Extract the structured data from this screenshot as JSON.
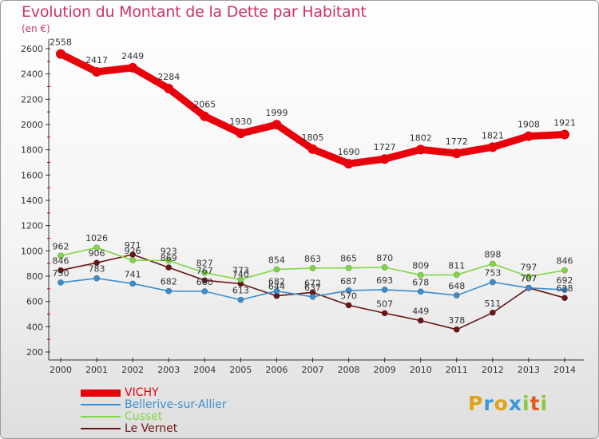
{
  "header": {
    "title": "Evolution du Montant de la Dette par Habitant",
    "unit": "(en €)"
  },
  "chart_data": {
    "type": "line",
    "title": "Evolution du Montant de la Dette par Habitant",
    "ylabel": "(en €)",
    "xlabel": "",
    "x": [
      "2000",
      "2001",
      "2002",
      "2003",
      "2004",
      "2005",
      "2006",
      "2007",
      "2008",
      "2009",
      "2010",
      "2011",
      "2012",
      "2013",
      "2014"
    ],
    "ylim": [
      200,
      2600
    ],
    "yticks": [
      200,
      400,
      600,
      800,
      1000,
      1200,
      1400,
      1600,
      1800,
      2000,
      2200,
      2400,
      2600
    ],
    "grid": false,
    "legend_position": "bottom-left",
    "series": [
      {
        "name": "VICHY",
        "color": "#e8000b",
        "values": [
          2558,
          2417,
          2449,
          2284,
          2065,
          1930,
          1999,
          1805,
          1690,
          1727,
          1802,
          1772,
          1821,
          1908,
          1921
        ]
      },
      {
        "name": "Bellerive-sur-Allier",
        "color": "#3a8ed0",
        "values": [
          750,
          783,
          741,
          682,
          680,
          613,
          682,
          637,
          687,
          693,
          678,
          648,
          753,
          707,
          692
        ]
      },
      {
        "name": "Cusset",
        "color": "#7fd842",
        "values": [
          962,
          1026,
          926,
          923,
          827,
          773,
          854,
          863,
          865,
          870,
          809,
          811,
          898,
          797,
          846
        ]
      },
      {
        "name": "Le Vernet",
        "color": "#6a1414",
        "values": [
          846,
          906,
          971,
          869,
          767,
          740,
          644,
          672,
          570,
          507,
          449,
          378,
          511,
          707,
          628
        ]
      }
    ]
  },
  "logo": {
    "letters": [
      "P",
      "r",
      "o",
      "x",
      "i",
      "t",
      "i"
    ],
    "colors": [
      "#e0a21a",
      "#3a9ad9",
      "#e0a21a",
      "#3a9ad9",
      "#8cc63f",
      "#e05a1a",
      "#8cc63f"
    ]
  }
}
